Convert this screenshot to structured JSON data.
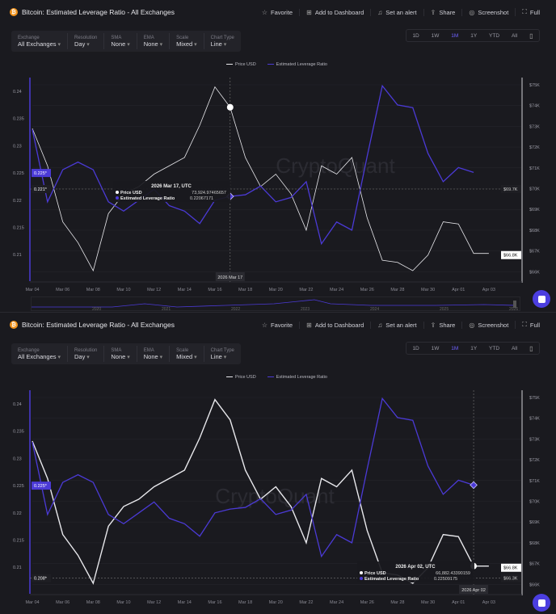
{
  "panels": [
    {
      "title": "Bitcoin: Estimated Leverage Ratio - All Exchanges",
      "actions": [
        "Favorite",
        "Add to Dashboard",
        "Set an alert",
        "Share",
        "Screenshot",
        "Full"
      ],
      "filters": [
        {
          "label": "Exchange",
          "value": "All Exchanges"
        },
        {
          "label": "Resolution",
          "value": "Day"
        },
        {
          "label": "SMA",
          "value": "None"
        },
        {
          "label": "EMA",
          "value": "None"
        },
        {
          "label": "Scale",
          "value": "Mixed"
        },
        {
          "label": "Chart Type",
          "value": "Line"
        }
      ],
      "timeframes": [
        "1D",
        "1W",
        "1M",
        "1Y",
        "YTD",
        "All"
      ],
      "active_timeframe": "1M",
      "hover": {
        "index": 13,
        "date_label": "2026 Mar 17",
        "tooltip_title": "2026 Mar 17, UTC",
        "price_label": "Price USD",
        "price_value": "73,924.97465657",
        "lev_label": "Estimated Leverage Ratio",
        "lev_value": "0.22067171",
        "left_marks": [
          {
            "text": "0.225*",
            "value": 0.225,
            "style": "accent"
          },
          {
            "text": "0.221*",
            "value": 0.221,
            "style": "dark"
          }
        ],
        "right_marks": [
          {
            "text": "$69.7K",
            "value": 69.7,
            "style": "dark"
          },
          {
            "text": "$66.8K",
            "value": 66.8,
            "style": "white"
          }
        ]
      },
      "navigator_years": [
        "2020",
        "2021",
        "2022",
        "2023",
        "2024",
        "2025",
        "2026"
      ]
    },
    {
      "title": "Bitcoin: Estimated Leverage Ratio - All Exchanges",
      "actions": [
        "Favorite",
        "Add to Dashboard",
        "Set an alert",
        "Share",
        "Screenshot",
        "Full"
      ],
      "filters": [
        {
          "label": "Exchange",
          "value": "All Exchanges"
        },
        {
          "label": "Resolution",
          "value": "Day"
        },
        {
          "label": "SMA",
          "value": "None"
        },
        {
          "label": "EMA",
          "value": "None"
        },
        {
          "label": "Scale",
          "value": "Mixed"
        },
        {
          "label": "Chart Type",
          "value": "Line"
        }
      ],
      "timeframes": [
        "1D",
        "1W",
        "1M",
        "1Y",
        "YTD",
        "All"
      ],
      "active_timeframe": "1M",
      "hover": {
        "index": 29,
        "date_label": "2026 Apr 02",
        "tooltip_title": "2026 Apr 02, UTC",
        "price_label": "Price USD",
        "price_value": "66,882.43390159",
        "lev_label": "Estimated Leverage Ratio",
        "lev_value": "0.22509175",
        "left_marks": [
          {
            "text": "0.225*",
            "value": 0.225,
            "style": "accent"
          },
          {
            "text": "0.208*",
            "value": 0.208,
            "style": "dark"
          }
        ],
        "right_marks": [
          {
            "text": "$66.3K",
            "value": 66.3,
            "style": "dark"
          },
          {
            "text": "$66.8K",
            "value": 66.8,
            "style": "white"
          }
        ]
      }
    }
  ],
  "watermark": "CryptoQuant",
  "chart_data": {
    "type": "line",
    "x": [
      "Mar 04",
      "Mar 05",
      "Mar 06",
      "Mar 07",
      "Mar 08",
      "Mar 09",
      "Mar 10",
      "Mar 11",
      "Mar 12",
      "Mar 13",
      "Mar 14",
      "Mar 15",
      "Mar 16",
      "Mar 17",
      "Mar 18",
      "Mar 19",
      "Mar 20",
      "Mar 21",
      "Mar 22",
      "Mar 23",
      "Mar 24",
      "Mar 25",
      "Mar 26",
      "Mar 27",
      "Mar 28",
      "Mar 29",
      "Mar 30",
      "Mar 31",
      "Apr 01",
      "Apr 02",
      "Apr 03"
    ],
    "x_tick_labels": [
      "Mar 04",
      "Mar 06",
      "Mar 08",
      "Mar 10",
      "Mar 12",
      "Mar 14",
      "Mar 16",
      "Mar 18",
      "Mar 20",
      "Mar 22",
      "Mar 24",
      "Mar 26",
      "Mar 28",
      "Mar 30",
      "Apr 01",
      "Apr 03"
    ],
    "series": [
      {
        "name": "Price USD",
        "axis": "right",
        "unit": "$K",
        "color": "#e8e8ec",
        "values": [
          72.9,
          71.1,
          68.4,
          67.4,
          66.05,
          68.8,
          69.75,
          70.1,
          70.7,
          71.1,
          71.5,
          73.05,
          74.9,
          73.92,
          71.5,
          70.1,
          70.7,
          69.75,
          68.0,
          71.1,
          70.7,
          71.5,
          68.6,
          66.55,
          66.45,
          66.05,
          66.8,
          68.4,
          68.3,
          66.88,
          66.88
        ]
      },
      {
        "name": "Estimated Leverage Ratio",
        "axis": "left",
        "color": "#4b3ad6",
        "values": [
          0.233,
          0.2197,
          0.2256,
          0.227,
          0.2256,
          0.2197,
          0.218,
          0.22,
          0.222,
          0.219,
          0.218,
          0.2157,
          0.22,
          0.2207,
          0.221,
          0.2226,
          0.2197,
          0.2205,
          0.2234,
          0.212,
          0.216,
          0.2145,
          0.228,
          0.241,
          0.2375,
          0.237,
          0.2286,
          0.2234,
          0.226,
          0.2251,
          null
        ]
      }
    ],
    "left_axis": {
      "ticks": [
        0.21,
        0.215,
        0.22,
        0.225,
        0.23,
        0.235,
        0.24
      ],
      "tick_labels": [
        "0.21",
        "0.215",
        "0.22",
        "0.225",
        "0.23",
        "0.235",
        "0.24"
      ],
      "range": [
        0.205,
        0.243
      ]
    },
    "right_axis": {
      "ticks": [
        66,
        67,
        68,
        69,
        70,
        71,
        72,
        73,
        74,
        75
      ],
      "tick_labels": [
        "$66K",
        "$67K",
        "$68K",
        "$69K",
        "$70K",
        "$71K",
        "$72K",
        "$73K",
        "$74K",
        "$75K"
      ],
      "range": [
        65.6,
        75.4
      ]
    },
    "legend": [
      "Price USD",
      "Estimated Leverage Ratio"
    ],
    "legend_position": "top-center",
    "grid": true
  }
}
